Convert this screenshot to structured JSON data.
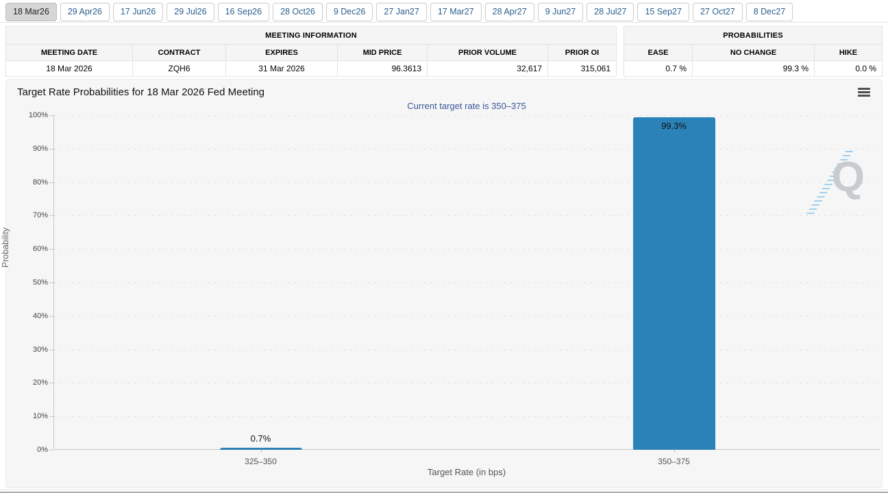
{
  "tabs": {
    "items": [
      "18 Mar26",
      "29 Apr26",
      "17 Jun26",
      "29 Jul26",
      "16 Sep26",
      "28 Oct26",
      "9 Dec26",
      "27 Jan27",
      "17 Mar27",
      "28 Apr27",
      "9 Jun27",
      "28 Jul27",
      "15 Sep27",
      "27 Oct27",
      "8 Dec27"
    ],
    "selected_index": 0
  },
  "meeting_info": {
    "title": "MEETING INFORMATION",
    "headers": [
      "MEETING DATE",
      "CONTRACT",
      "EXPIRES",
      "MID PRICE",
      "PRIOR VOLUME",
      "PRIOR OI"
    ],
    "row": [
      "18 Mar 2026",
      "ZQH6",
      "31 Mar 2026",
      "96.3613",
      "32,617",
      "315,061"
    ]
  },
  "probabilities": {
    "title": "PROBABILITIES",
    "headers": [
      "EASE",
      "NO CHANGE",
      "HIKE"
    ],
    "row": [
      "0.7 %",
      "99.3 %",
      "0.0 %"
    ]
  },
  "chart_data": {
    "type": "bar",
    "title": "Target Rate Probabilities for 18 Mar 2026 Fed Meeting",
    "subtitle": "Current target rate is 350–375",
    "categories": [
      "325–350",
      "350–375"
    ],
    "values": [
      0.7,
      99.3
    ],
    "bar_labels": [
      "0.7%",
      "99.3%"
    ],
    "xlabel": "Target Rate (in bps)",
    "ylabel": "Probability",
    "ylim": [
      0,
      100
    ],
    "ytick_step": 10,
    "ytick_suffix": "%",
    "grid": "dotted-horizontal",
    "legend": "none",
    "bar_color": "#2b82b8"
  },
  "watermark": {
    "letter": "Q"
  },
  "colors": {
    "bar": "#2b82b8",
    "subtitle": "#3b5795",
    "tab_text": "#2a5e8c",
    "panel_bg": "#f6f6f7"
  }
}
